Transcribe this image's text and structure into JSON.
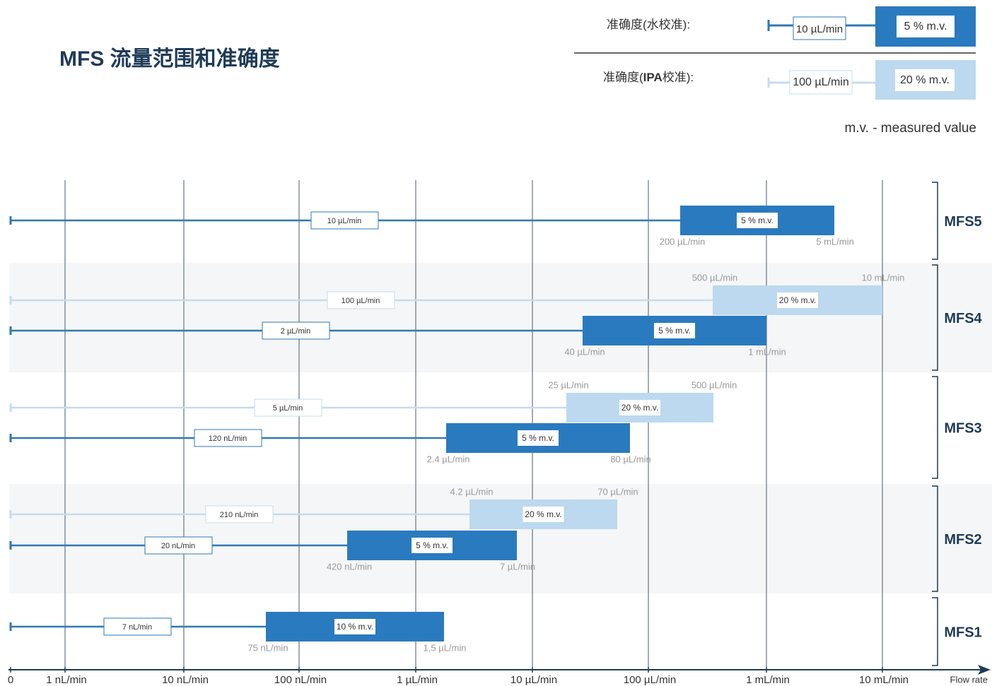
{
  "title": "MFS 流量范围和准确度",
  "legend": {
    "water": {
      "label": "准确度(水校准):",
      "start": "10 µL/min",
      "accuracy": "5 % m.v."
    },
    "ipa": {
      "label_parts": [
        "准确度(",
        "IPA",
        "校准):"
      ],
      "start": "100 µL/min",
      "accuracy": "20 % m.v."
    },
    "note": "m.v. - measured value"
  },
  "axis": {
    "labels": [
      "0",
      "1 nL/min",
      "10 nL/min",
      "100 nL/min",
      "1 µL/min",
      "10 µL/min",
      "100 µL/min",
      "1 mL/min",
      "10 mL/min"
    ],
    "title": "Flow rate"
  },
  "groups": [
    {
      "name": "MFS5",
      "rows": [
        {
          "kind": "water",
          "start": "10 µL/min",
          "from": "200 µL/min",
          "to": "5 mL/min",
          "accuracy": "5 % m.v."
        }
      ]
    },
    {
      "name": "MFS4",
      "rows": [
        {
          "kind": "ipa",
          "start": "100 µL/min",
          "from": "500 µL/min",
          "to": "10 mL/min",
          "accuracy": "20 % m.v."
        },
        {
          "kind": "water",
          "start": "2 µL/min",
          "from": "40 µL/min",
          "to": "1 mL/min",
          "accuracy": "5 % m.v."
        }
      ]
    },
    {
      "name": "MFS3",
      "rows": [
        {
          "kind": "ipa",
          "start": "5 µL/min",
          "from": "25 µL/min",
          "to": "500 µL/min",
          "accuracy": "20 % m.v."
        },
        {
          "kind": "water",
          "start": "120 nL/min",
          "from": "2.4 µL/min",
          "to": "80 µL/min",
          "accuracy": "5 % m.v."
        }
      ]
    },
    {
      "name": "MFS2",
      "rows": [
        {
          "kind": "ipa",
          "start": "210 nL/min",
          "from": "4.2 µL/min",
          "to": "70 µL/min",
          "accuracy": "20 % m.v."
        },
        {
          "kind": "water",
          "start": "20 nL/min",
          "from": "420 nL/min",
          "to": "7 µL/min",
          "accuracy": "5 % m.v."
        }
      ]
    },
    {
      "name": "MFS1",
      "rows": [
        {
          "kind": "water",
          "start": "7 nL/min",
          "from": "75 nL/min",
          "to": "1.5 µL/min",
          "accuracy": "10 % m.v."
        }
      ]
    }
  ]
}
